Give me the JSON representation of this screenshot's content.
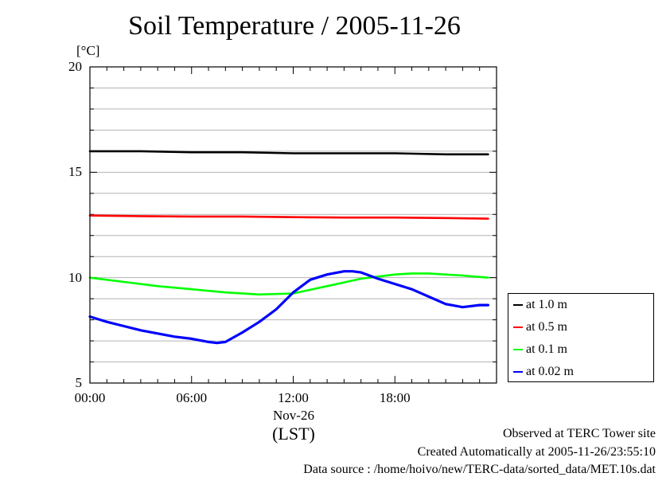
{
  "chart_data": {
    "type": "line",
    "title": "Soil Temperature / 2005-11-26",
    "ylabel_unit": "[°C]",
    "xlabel": "(LST)",
    "x_date_label": "Nov-26",
    "x_range_hours": [
      0,
      24
    ],
    "ylim": [
      5,
      20
    ],
    "y_ticks": [
      5,
      10,
      15,
      20
    ],
    "x_ticks": [
      {
        "hour": 0,
        "label": "00:00"
      },
      {
        "hour": 6,
        "label": "06:00"
      },
      {
        "hour": 12,
        "label": "12:00"
      },
      {
        "hour": 18,
        "label": "18:00"
      }
    ],
    "grid": true,
    "legend_position": "right",
    "series": [
      {
        "name": "at 1.0 m",
        "color": "#000000",
        "x": [
          0,
          3,
          6,
          9,
          12,
          15,
          18,
          21,
          23.5
        ],
        "y": [
          16.0,
          16.0,
          15.95,
          15.95,
          15.9,
          15.9,
          15.9,
          15.85,
          15.85
        ]
      },
      {
        "name": "at 0.5 m",
        "color": "#ff0000",
        "x": [
          0,
          3,
          6,
          9,
          12,
          15,
          18,
          21,
          23.5
        ],
        "y": [
          12.95,
          12.92,
          12.9,
          12.9,
          12.87,
          12.85,
          12.85,
          12.83,
          12.8
        ]
      },
      {
        "name": "at 0.1 m",
        "color": "#00ff00",
        "x": [
          0,
          2,
          4,
          6,
          8,
          10,
          12,
          14,
          16,
          18,
          19,
          20,
          22,
          23.5
        ],
        "y": [
          10.0,
          9.8,
          9.6,
          9.45,
          9.3,
          9.2,
          9.25,
          9.6,
          9.95,
          10.15,
          10.2,
          10.2,
          10.1,
          10.0
        ]
      },
      {
        "name": "at 0.02 m",
        "color": "#0000ff",
        "x": [
          0,
          1,
          2,
          3,
          4,
          5,
          6,
          7,
          7.5,
          8,
          9,
          10,
          11,
          12,
          13,
          14,
          15,
          15.5,
          16,
          17,
          18,
          19,
          20,
          21,
          22,
          23,
          23.5
        ],
        "y": [
          8.15,
          7.9,
          7.7,
          7.5,
          7.35,
          7.2,
          7.1,
          6.95,
          6.9,
          6.95,
          7.4,
          7.9,
          8.5,
          9.3,
          9.9,
          10.15,
          10.3,
          10.3,
          10.25,
          9.95,
          9.7,
          9.45,
          9.1,
          8.75,
          8.6,
          8.7,
          8.7
        ]
      }
    ]
  },
  "footer": {
    "site": "Observed at TERC Tower site",
    "created": "Created Automatically at 2005-11-26/23:55:10",
    "source": "Data source : /home/hoivo/new/TERC-data/sorted_data/MET.10s.dat"
  }
}
